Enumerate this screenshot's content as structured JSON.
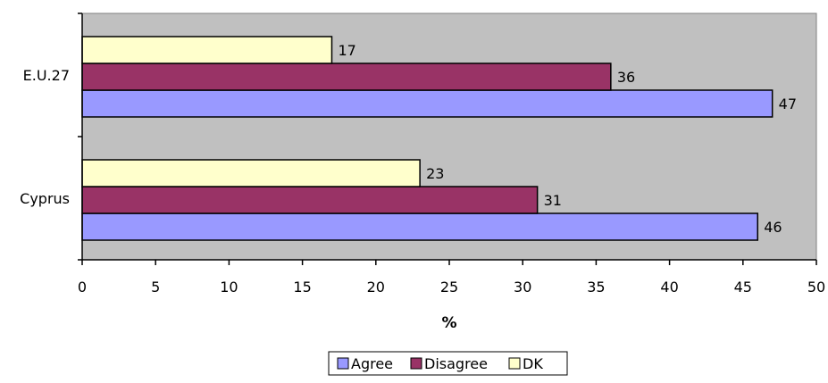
{
  "chart_data": {
    "type": "bar",
    "orientation": "horizontal",
    "categories": [
      "Cyprus",
      "E.U.27"
    ],
    "series": [
      {
        "name": "Agree",
        "values": [
          46,
          47
        ]
      },
      {
        "name": "Disagree",
        "values": [
          31,
          36
        ]
      },
      {
        "name": "DK",
        "values": [
          23,
          17
        ]
      }
    ],
    "xlabel": "%",
    "ylabel": "",
    "xlim": [
      0,
      50
    ],
    "xticks": [
      0,
      5,
      10,
      15,
      20,
      25,
      30,
      35,
      40,
      45,
      50
    ],
    "data_labels": true,
    "grid": false,
    "legend_position": "bottom",
    "colors": {
      "Agree": "#9999ff",
      "Disagree": "#993366",
      "DK": "#ffffcc",
      "plot_background": "#c0c0c0"
    }
  }
}
